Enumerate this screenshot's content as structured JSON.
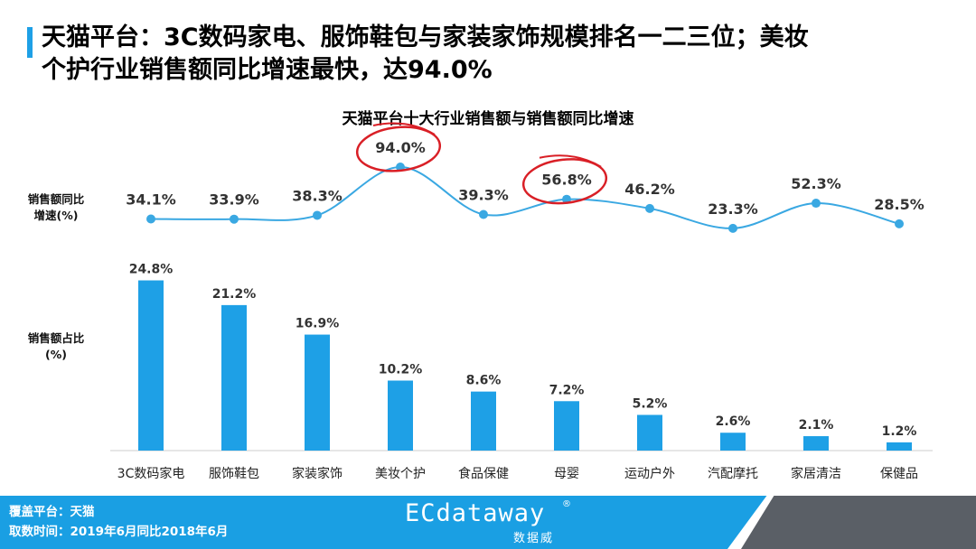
{
  "slide": {
    "title_line1": "天猫平台：3C数码家电、服饰鞋包与家装家饰规模排名一二三位；美妆",
    "title_line2": "个护行业销售额同比增速最快，达94.0%"
  },
  "labels": {
    "growth_label_line1": "销售额同比",
    "growth_label_line2": "增速(%)",
    "share_label_line1": "销售额占比",
    "share_label_line2": "(%)"
  },
  "footer": {
    "platform": "覆盖平台：天猫",
    "period": "取数时间：2019年6月同比2018年6月",
    "brand": "ECdataway",
    "brand_mark": "®",
    "brand_sub": "数据威"
  },
  "colors": {
    "bar": "#1ea0e6",
    "line": "#3aa8e2",
    "highlight_circle": "#d91f26",
    "footer": "#1a9fe3"
  },
  "chart_data": {
    "title": "天猫平台十大行业销售额与销售额同比增速",
    "type": "bar+line",
    "categories": [
      "3C数码家电",
      "服饰鞋包",
      "家装家饰",
      "美妆个护",
      "食品保健",
      "母婴",
      "运动户外",
      "汽配摩托",
      "家居清洁",
      "保健品"
    ],
    "series": [
      {
        "name": "销售额同比增速(%)",
        "type": "line",
        "values": [
          34.1,
          33.9,
          38.3,
          94.0,
          39.3,
          56.8,
          46.2,
          23.3,
          52.3,
          28.5
        ],
        "labels": [
          "34.1%",
          "33.9%",
          "38.3%",
          "94.0%",
          "39.3%",
          "56.8%",
          "46.2%",
          "23.3%",
          "52.3%",
          "28.5%"
        ],
        "highlighted": [
          "美妆个护",
          "母婴"
        ]
      },
      {
        "name": "销售额占比(%)",
        "type": "bar",
        "values": [
          24.8,
          21.2,
          16.9,
          10.2,
          8.6,
          7.2,
          5.2,
          2.6,
          2.1,
          1.2
        ],
        "labels": [
          "24.8%",
          "21.2%",
          "16.9%",
          "10.2%",
          "8.6%",
          "7.2%",
          "5.2%",
          "2.6%",
          "2.1%",
          "1.2%"
        ]
      }
    ]
  }
}
